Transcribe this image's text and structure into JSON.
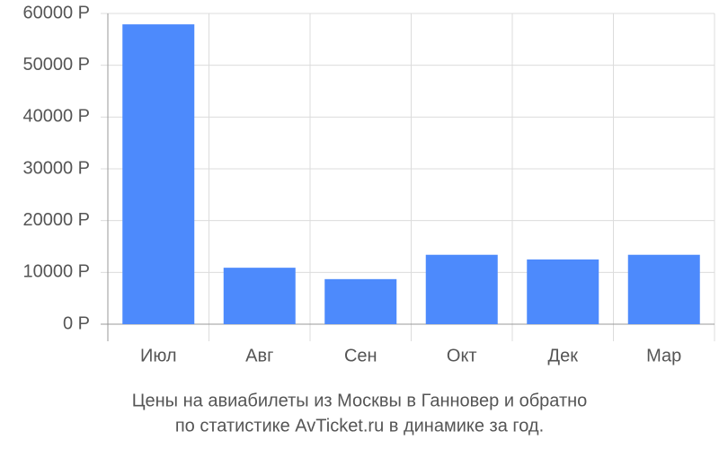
{
  "chart_data": {
    "type": "bar",
    "title": [
      "Цены на авиабилеты из Москвы в Ганновер и обратно",
      "по статистике AvTicket.ru в динамике за год."
    ],
    "categories": [
      "Июл",
      "Авг",
      "Сен",
      "Окт",
      "Дек",
      "Мар"
    ],
    "values": [
      57900,
      10900,
      8700,
      13400,
      12500,
      13400
    ],
    "color": "#4d8afc",
    "ylim": [
      0,
      60000
    ],
    "yticks": [
      {
        "value": 0,
        "label": "0 Р"
      },
      {
        "value": 10000,
        "label": "10000 Р"
      },
      {
        "value": 20000,
        "label": "20000 Р"
      },
      {
        "value": 30000,
        "label": "30000 Р"
      },
      {
        "value": 40000,
        "label": "40000 Р"
      },
      {
        "value": 50000,
        "label": "50000 Р"
      },
      {
        "value": 60000,
        "label": "60000 Р"
      }
    ],
    "grid": true
  }
}
